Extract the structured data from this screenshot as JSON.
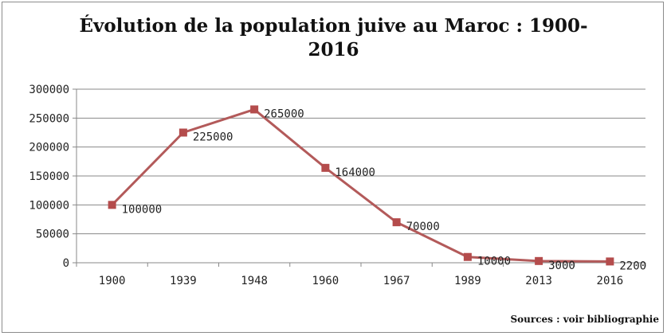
{
  "chart_data": {
    "type": "line",
    "title_lines": [
      "Évolution de la population juive au Maroc : 1900-",
      "2016"
    ],
    "categories": [
      "1900",
      "1939",
      "1948",
      "1960",
      "1967",
      "1989",
      "2013",
      "2016"
    ],
    "series": [
      {
        "values": [
          100000,
          225000,
          265000,
          164000,
          70000,
          10000,
          3000,
          2200
        ],
        "labels": [
          "100000",
          "225000",
          "265000",
          "164000",
          "70000",
          "10000",
          "3000",
          "2200"
        ]
      }
    ],
    "y_ticks": [
      "0",
      "50000",
      "100000",
      "150000",
      "200000",
      "250000",
      "300000"
    ],
    "ylim": [
      0,
      300000
    ],
    "xlabel": "",
    "ylabel": "",
    "grid": true,
    "legend": "none",
    "colors": {
      "line": "#b35a5a",
      "marker": "#b44c4c",
      "grid": "#888888",
      "axis": "#888888"
    }
  },
  "source_note": "Sources : voir bibliographie"
}
